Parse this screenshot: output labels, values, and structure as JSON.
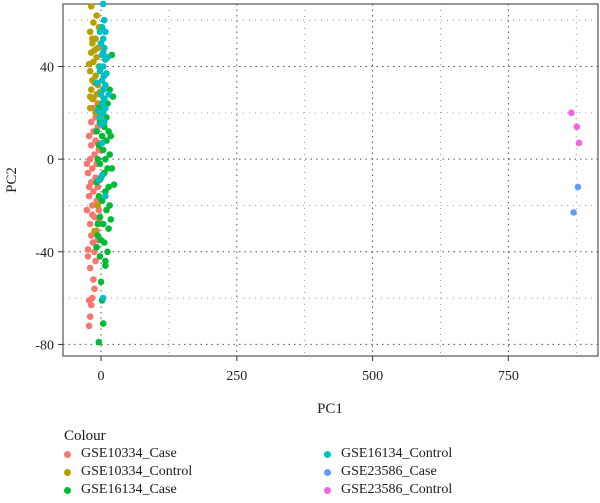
{
  "chart_data": {
    "type": "scatter",
    "xlabel": "PC1",
    "ylabel": "PC2",
    "xlim": [
      -70,
      915
    ],
    "ylim": [
      -85,
      67
    ],
    "xticks": [
      0,
      250,
      500,
      750
    ],
    "yticks": [
      -80,
      -40,
      0,
      40
    ],
    "grid": true,
    "legend_position": "bottom",
    "legend_title": "Colour",
    "series": [
      {
        "name": "GSE10334_Case",
        "color": "#F8766D",
        "points": [
          [
            -22,
            -72
          ],
          [
            -18,
            -63
          ],
          [
            -12,
            -56
          ],
          [
            -20,
            -47
          ],
          [
            -10,
            -44
          ],
          [
            -24,
            -39
          ],
          [
            -15,
            -36
          ],
          [
            -6,
            -35
          ],
          [
            -18,
            -33
          ],
          [
            -8,
            -31
          ],
          [
            -20,
            -28
          ],
          [
            -12,
            -25
          ],
          [
            -4,
            -22
          ],
          [
            -16,
            -20
          ],
          [
            -8,
            -18
          ],
          [
            -22,
            -16
          ],
          [
            -14,
            -14
          ],
          [
            -6,
            -12
          ],
          [
            -18,
            -10
          ],
          [
            -10,
            -8
          ],
          [
            -24,
            -6
          ],
          [
            -16,
            -4
          ],
          [
            -8,
            -2
          ],
          [
            -20,
            0
          ],
          [
            -12,
            2
          ],
          [
            -4,
            4
          ],
          [
            -18,
            6
          ],
          [
            -10,
            8
          ],
          [
            -22,
            10
          ],
          [
            -14,
            12
          ],
          [
            -6,
            14
          ],
          [
            -18,
            16
          ],
          [
            -10,
            18
          ],
          [
            -2,
            20
          ],
          [
            -14,
            22
          ],
          [
            -6,
            24
          ],
          [
            -16,
            -24
          ],
          [
            -26,
            -22
          ],
          [
            -22,
            -12
          ],
          [
            -26,
            -2
          ],
          [
            -20,
            -68
          ],
          [
            -16,
            -60
          ],
          [
            -14,
            -52
          ],
          [
            -24,
            -42
          ],
          [
            -12,
            -40
          ],
          [
            -4,
            -27
          ],
          [
            -2,
            -9
          ],
          [
            -6,
            7
          ],
          [
            -16,
            26
          ],
          [
            -22,
            -61
          ]
        ]
      },
      {
        "name": "GSE10334_Control",
        "color": "#B79F00",
        "points": [
          [
            -18,
            66
          ],
          [
            -8,
            62
          ],
          [
            -14,
            59
          ],
          [
            -4,
            57
          ],
          [
            -20,
            55
          ],
          [
            -10,
            52
          ],
          [
            -16,
            50
          ],
          [
            -6,
            48
          ],
          [
            -18,
            46
          ],
          [
            -8,
            44
          ],
          [
            -14,
            42
          ],
          [
            -4,
            40
          ],
          [
            -20,
            38
          ],
          [
            -10,
            36
          ],
          [
            -16,
            34
          ],
          [
            -6,
            32
          ],
          [
            -18,
            30
          ],
          [
            -8,
            28
          ],
          [
            -14,
            26
          ],
          [
            -4,
            24
          ],
          [
            -20,
            22
          ],
          [
            -10,
            20
          ],
          [
            -12,
            -31
          ],
          [
            -6,
            -20
          ],
          [
            -16,
            52
          ],
          [
            -12,
            47
          ],
          [
            -22,
            41
          ],
          [
            -12,
            33
          ],
          [
            -20,
            27
          ],
          [
            -2,
            29
          ]
        ]
      },
      {
        "name": "GSE16134_Case",
        "color": "#00BA38",
        "points": [
          [
            -4,
            -79
          ],
          [
            4,
            -71
          ],
          [
            2,
            -61
          ],
          [
            8,
            -44
          ],
          [
            -2,
            -42
          ],
          [
            12,
            -40
          ],
          [
            6,
            -36
          ],
          [
            -6,
            -33
          ],
          [
            14,
            -30
          ],
          [
            4,
            -28
          ],
          [
            -2,
            -25
          ],
          [
            10,
            -22
          ],
          [
            16,
            -20
          ],
          [
            2,
            -18
          ],
          [
            -4,
            -16
          ],
          [
            8,
            -14
          ],
          [
            14,
            -12
          ],
          [
            24,
            -11
          ],
          [
            0,
            -8
          ],
          [
            6,
            -6
          ],
          [
            12,
            -4
          ],
          [
            -2,
            -2
          ],
          [
            8,
            0
          ],
          [
            16,
            2
          ],
          [
            4,
            4
          ],
          [
            -4,
            6
          ],
          [
            10,
            8
          ],
          [
            2,
            10
          ],
          [
            14,
            12
          ],
          [
            6,
            14
          ],
          [
            -2,
            16
          ],
          [
            10,
            18
          ],
          [
            4,
            20
          ],
          [
            -4,
            22
          ],
          [
            12,
            24
          ],
          [
            6,
            26
          ],
          [
            22,
            27
          ],
          [
            16,
            30
          ],
          [
            20,
            45
          ],
          [
            -8,
            -38
          ],
          [
            0,
            -53
          ],
          [
            8,
            -46
          ],
          [
            -6,
            -28
          ],
          [
            18,
            -26
          ],
          [
            -8,
            -10
          ],
          [
            20,
            -4
          ],
          [
            -6,
            0
          ],
          [
            18,
            10
          ],
          [
            -8,
            12
          ],
          [
            0,
            -35
          ]
        ]
      },
      {
        "name": "GSE16134_Control",
        "color": "#00BFC4",
        "points": [
          [
            4,
            67
          ],
          [
            6,
            60
          ],
          [
            2,
            57
          ],
          [
            8,
            55
          ],
          [
            4,
            52
          ],
          [
            0,
            50
          ],
          [
            6,
            48
          ],
          [
            2,
            45
          ],
          [
            8,
            43
          ],
          [
            4,
            40
          ],
          [
            -2,
            38
          ],
          [
            6,
            36
          ],
          [
            2,
            34
          ],
          [
            8,
            32
          ],
          [
            4,
            30
          ],
          [
            0,
            28
          ],
          [
            6,
            26
          ],
          [
            2,
            24
          ],
          [
            8,
            22
          ],
          [
            4,
            20
          ],
          [
            -2,
            18
          ],
          [
            6,
            16
          ],
          [
            14,
            28
          ],
          [
            2,
            7
          ],
          [
            8,
            -16
          ],
          [
            2,
            -7
          ],
          [
            0,
            15
          ],
          [
            -8,
            33
          ],
          [
            -6,
            21
          ],
          [
            10,
            37
          ],
          [
            4,
            -60
          ],
          [
            -4,
            -9
          ],
          [
            -2,
            40
          ],
          [
            4,
            46
          ],
          [
            -2,
            55
          ],
          [
            12,
            44
          ]
        ]
      },
      {
        "name": "GSE23586_Case",
        "color": "#619CFF",
        "points": [
          [
            878,
            -12
          ],
          [
            870,
            -23
          ]
        ]
      },
      {
        "name": "GSE23586_Control",
        "color": "#F564E3",
        "points": [
          [
            866,
            20
          ],
          [
            876,
            14
          ],
          [
            880,
            7
          ]
        ]
      }
    ]
  }
}
